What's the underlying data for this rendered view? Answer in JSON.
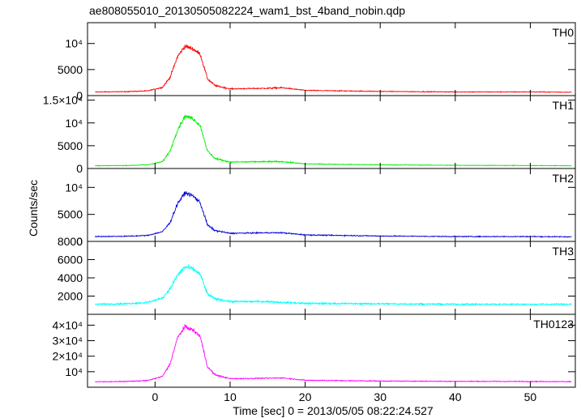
{
  "chart_data": {
    "type": "line",
    "title": "ae808055010_20130505082224_wam1_bst_4band_nobin.qdp",
    "xlabel": "Time [sec] 0 = 2013/05/05 08:22:24.527",
    "ylabel": "Counts/sec",
    "xlim": [
      -9,
      56
    ],
    "x_ticks": [
      0,
      10,
      20,
      30,
      40,
      50
    ],
    "x_tick_labels": [
      "0",
      "10",
      "20",
      "30",
      "40",
      "50"
    ],
    "grid": false,
    "panels": [
      {
        "name": "TH0",
        "color": "#ff0000",
        "ylim": [
          0,
          14000
        ],
        "y_ticks": [
          0,
          5000,
          10000
        ],
        "y_tick_labels": [
          "0",
          "5000",
          "10⁴"
        ],
        "baseline": 700,
        "peak": 9500,
        "peak_time": 4.5,
        "hump": 700,
        "x": [
          -8,
          -4,
          -1,
          1,
          2,
          3,
          4,
          5,
          6,
          7,
          8,
          10,
          15,
          17,
          20,
          30,
          40,
          50,
          55.5
        ],
        "values": [
          700,
          750,
          900,
          1600,
          3500,
          7500,
          9500,
          9000,
          8000,
          3200,
          1900,
          1300,
          1400,
          1500,
          1000,
          800,
          700,
          700,
          650
        ]
      },
      {
        "name": "TH1",
        "color": "#00ee00",
        "ylim": [
          0,
          16000
        ],
        "y_ticks": [
          0,
          5000,
          10000,
          15000
        ],
        "y_tick_labels": [
          "0",
          "5000",
          "10⁴",
          "1.5×10⁴"
        ],
        "baseline": 600,
        "peak": 11500,
        "peak_time": 4.5,
        "hump": 900,
        "x": [
          -8,
          -4,
          -1,
          1,
          2,
          3,
          4,
          5,
          6,
          7,
          8,
          10,
          15,
          17,
          20,
          30,
          40,
          50,
          55.5
        ],
        "values": [
          600,
          650,
          800,
          1500,
          3800,
          8500,
          11500,
          11000,
          9500,
          3800,
          2200,
          1400,
          1500,
          1500,
          1000,
          800,
          700,
          650,
          600
        ]
      },
      {
        "name": "TH2",
        "color": "#0000dd",
        "ylim": [
          0,
          13500
        ],
        "y_ticks": [
          0,
          5000,
          10000
        ],
        "y_tick_labels": [
          "0",
          "5000",
          "10⁴"
        ],
        "baseline": 900,
        "peak": 9000,
        "peak_time": 4.5,
        "hump": 800,
        "x": [
          -8,
          -4,
          -1,
          1,
          2,
          3,
          4,
          5,
          6,
          7,
          8,
          10,
          15,
          17,
          20,
          30,
          40,
          50,
          55.5
        ],
        "values": [
          900,
          950,
          1100,
          1800,
          3500,
          7000,
          9000,
          8500,
          7200,
          3000,
          2000,
          1500,
          1600,
          1600,
          1200,
          1000,
          900,
          900,
          850
        ]
      },
      {
        "name": "TH3",
        "color": "#00ffff",
        "ylim": [
          0,
          8000
        ],
        "y_ticks": [
          2000,
          4000,
          6000,
          8000
        ],
        "y_tick_labels": [
          "2000",
          "4000",
          "6000",
          "8000"
        ],
        "baseline": 1100,
        "peak": 5200,
        "peak_time": 4.5,
        "hump": 150,
        "x": [
          -8,
          -4,
          -1,
          1,
          2,
          3,
          4,
          5,
          6,
          7,
          8,
          10,
          15,
          17,
          20,
          30,
          40,
          50,
          55.5
        ],
        "values": [
          1100,
          1150,
          1300,
          1800,
          2800,
          4300,
          5200,
          5000,
          4400,
          2200,
          1700,
          1400,
          1400,
          1300,
          1200,
          1150,
          1100,
          1100,
          1100
        ]
      },
      {
        "name": "TH0123",
        "color": "#ff00ff",
        "ylim": [
          0,
          47000
        ],
        "y_ticks": [
          10000,
          20000,
          30000,
          40000
        ],
        "y_tick_labels": [
          "10⁴",
          "2×10⁴",
          "3×10⁴",
          "4×10⁴"
        ],
        "baseline": 3500,
        "peak": 39000,
        "peak_time": 4.5,
        "hump": 2000,
        "x": [
          -8,
          -4,
          -1,
          1,
          2,
          3,
          4,
          5,
          6,
          7,
          8,
          10,
          15,
          17,
          20,
          30,
          40,
          50,
          55.5
        ],
        "values": [
          3500,
          3700,
          4300,
          7000,
          15000,
          32000,
          39000,
          37000,
          33000,
          13000,
          8000,
          5500,
          5800,
          6000,
          4500,
          4000,
          3800,
          3700,
          3600
        ]
      }
    ]
  }
}
